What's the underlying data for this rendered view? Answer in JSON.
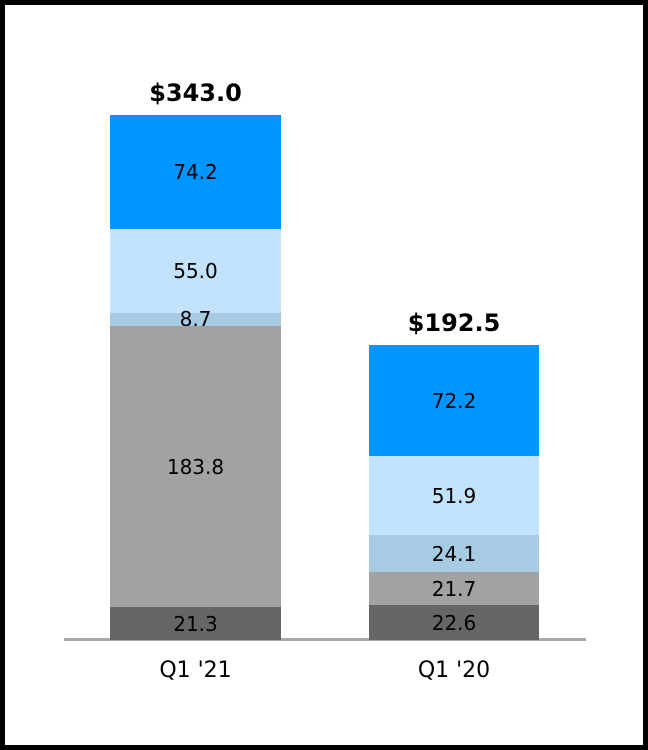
{
  "window": {
    "background": "#FFFFFF",
    "frame_border_color": "#000000"
  },
  "chart_data": {
    "type": "bar",
    "stacked": true,
    "title": "",
    "xlabel": "",
    "ylabel": "",
    "grid": false,
    "legend": "none",
    "categories": [
      "Q1 '21",
      "Q1 '20"
    ],
    "totals": [
      343.0,
      192.5
    ],
    "total_labels": [
      "$343.0",
      "$192.5"
    ],
    "series": [
      {
        "name": "segment-dark-gray",
        "color": "#666666",
        "values": [
          21.3,
          22.6
        ]
      },
      {
        "name": "segment-gray",
        "color": "#A2A2A2",
        "values": [
          183.8,
          21.7
        ]
      },
      {
        "name": "segment-steel-blue",
        "color": "#A8CBE4",
        "values": [
          8.7,
          24.1
        ]
      },
      {
        "name": "segment-light-blue",
        "color": "#C3E2FC",
        "values": [
          55.0,
          51.9
        ]
      },
      {
        "name": "segment-bright-blue",
        "color": "#0095FF",
        "values": [
          74.2,
          72.2
        ]
      }
    ],
    "segment_labels": [
      [
        "21.3",
        "183.8",
        "8.7",
        "55.0",
        "74.2"
      ],
      [
        "22.6",
        "21.7",
        "24.1",
        "51.9",
        "72.2"
      ]
    ],
    "value_label_format": "one-decimal",
    "axis_line_color": "#A9A9A9",
    "text_color": "#000000"
  }
}
